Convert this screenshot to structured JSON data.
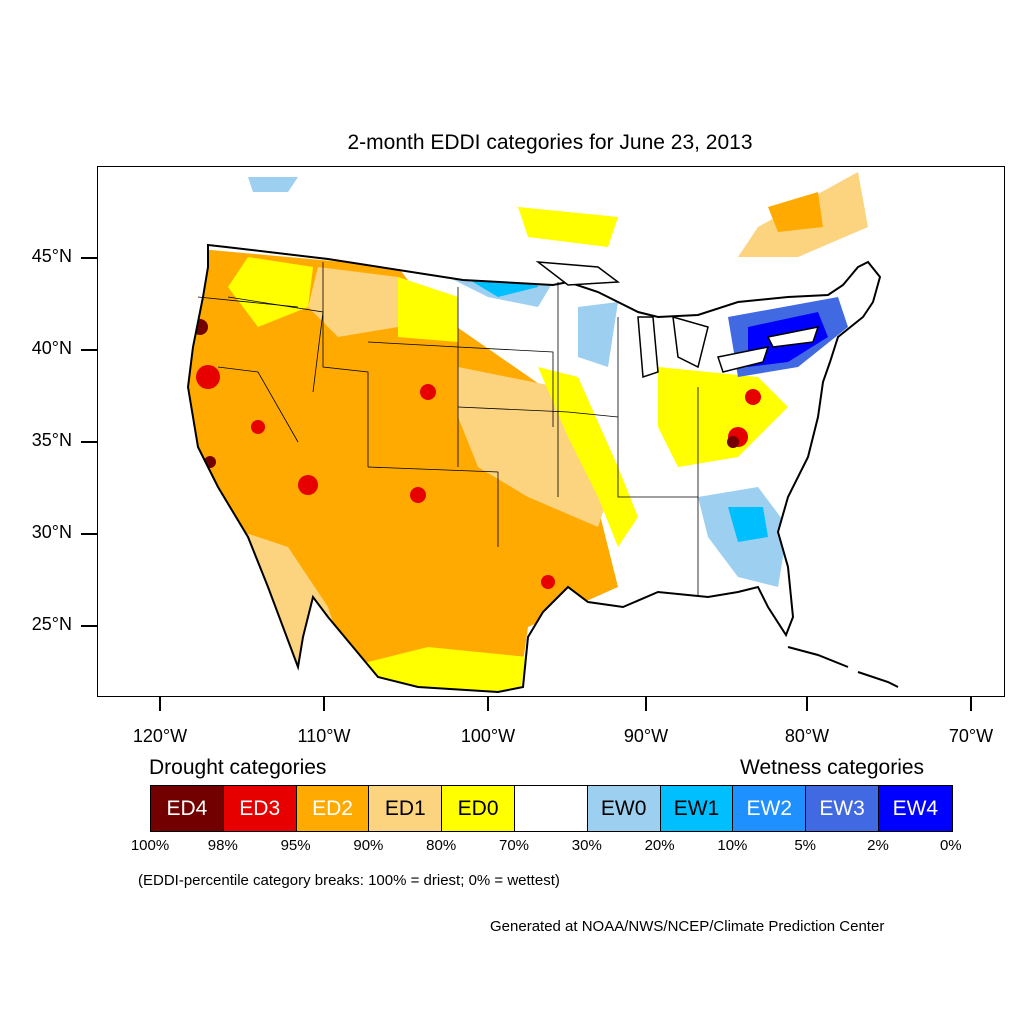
{
  "title": "2-month EDDI categories for June 23, 2013",
  "lat_labels": [
    "45°N",
    "40°N",
    "35°N",
    "30°N",
    "25°N"
  ],
  "lon_labels": [
    "120°W",
    "110°W",
    "100°W",
    "90°W",
    "80°W",
    "70°W"
  ],
  "legend": {
    "drought_title": "Drought categories",
    "wetness_title": "Wetness categories",
    "categories": [
      {
        "label": "ED4",
        "color": "#730000",
        "text_color": "#ffffff"
      },
      {
        "label": "ED3",
        "color": "#e60000",
        "text_color": "#ffffff"
      },
      {
        "label": "ED2",
        "color": "#ffaa00",
        "text_color": "#ffffff"
      },
      {
        "label": "ED1",
        "color": "#fcd37f",
        "text_color": "#000000"
      },
      {
        "label": "ED0",
        "color": "#ffff00",
        "text_color": "#000000"
      },
      {
        "label": "",
        "color": "#ffffff",
        "text_color": "#000000"
      },
      {
        "label": "EW0",
        "color": "#9ccff0",
        "text_color": "#000000"
      },
      {
        "label": "EW1",
        "color": "#00bfff",
        "text_color": "#000000"
      },
      {
        "label": "EW2",
        "color": "#1e90ff",
        "text_color": "#ffffff"
      },
      {
        "label": "EW3",
        "color": "#4169e1",
        "text_color": "#ffffff"
      },
      {
        "label": "EW4",
        "color": "#0000ff",
        "text_color": "#ffffff"
      }
    ],
    "percent_breaks": [
      "100%",
      "98%",
      "95%",
      "90%",
      "80%",
      "70%",
      "30%",
      "20%",
      "10%",
      "5%",
      "2%",
      "0%"
    ]
  },
  "note": "(EDDI-percentile category breaks: 100% = driest; 0% = wettest)",
  "credit": "Generated at NOAA/NWS/NCEP/Climate Prediction Center"
}
